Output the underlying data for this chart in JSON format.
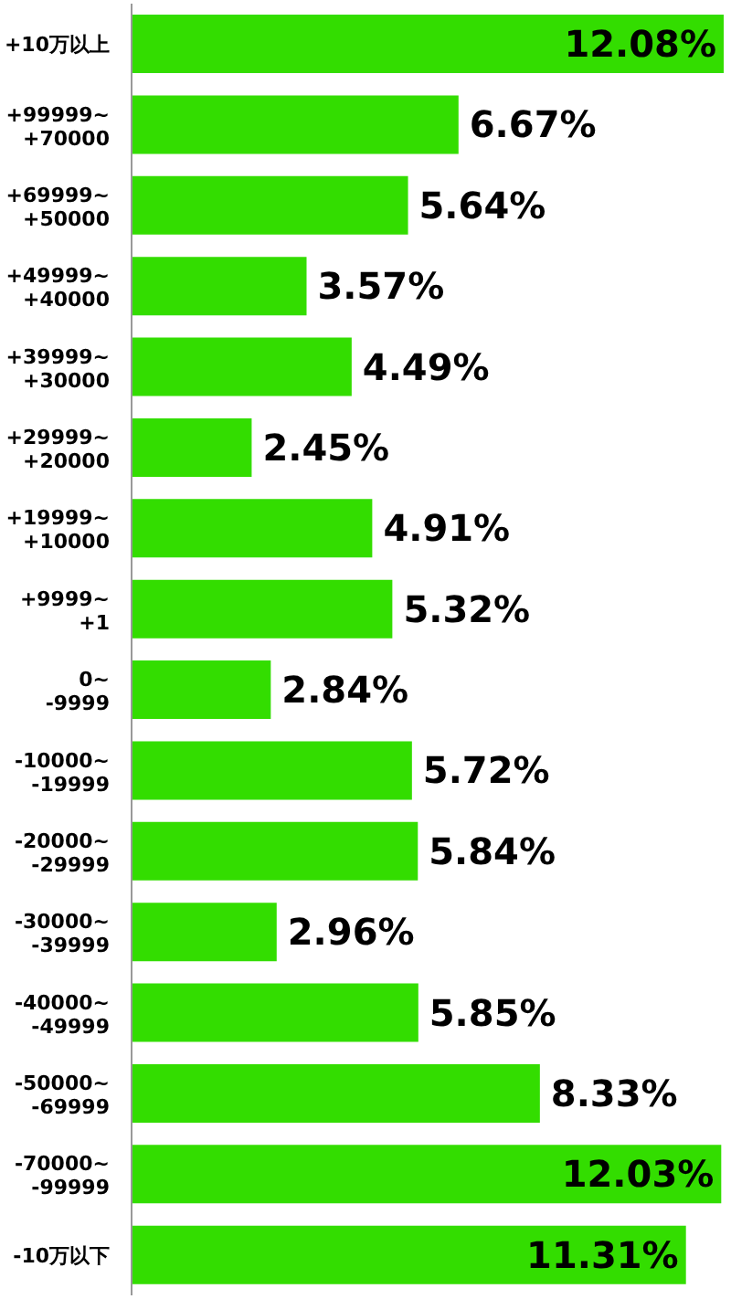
{
  "chart_data": {
    "type": "bar",
    "orientation": "horizontal",
    "categories": [
      "+10万以上",
      "+99999~\n+70000",
      "+69999~\n+50000",
      "+49999~\n+40000",
      "+39999~\n+30000",
      "+29999~\n+20000",
      "+19999~\n+10000",
      "+9999~\n+1",
      "0~\n-9999",
      "-10000~\n-19999",
      "-20000~\n-29999",
      "-30000~\n-39999",
      "-40000~\n-49999",
      "-50000~\n-69999",
      "-70000~\n-99999",
      "-10万以下"
    ],
    "values": [
      12.08,
      6.67,
      5.64,
      3.57,
      4.49,
      2.45,
      4.91,
      5.32,
      2.84,
      5.72,
      5.84,
      2.96,
      5.85,
      8.33,
      12.03,
      11.31
    ],
    "value_labels": [
      "12.08%",
      "6.67%",
      "5.64%",
      "3.57%",
      "4.49%",
      "2.45%",
      "4.91%",
      "5.32%",
      "2.84%",
      "5.72%",
      "5.84%",
      "2.96%",
      "5.85%",
      "8.33%",
      "12.03%",
      "11.31%"
    ],
    "color": "#33dd00"
  }
}
